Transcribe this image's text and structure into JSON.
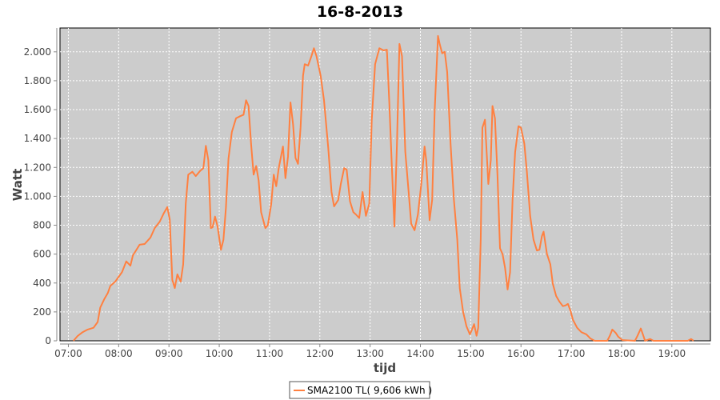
{
  "chart_data": {
    "type": "line",
    "title": "16-8-2013",
    "xlabel": "tijd",
    "ylabel": "Watt",
    "xlim": [
      "06:50",
      "19:46"
    ],
    "ylim": [
      0,
      2165
    ],
    "x_ticks": [
      "07:00",
      "08:00",
      "09:00",
      "10:00",
      "11:00",
      "12:00",
      "13:00",
      "14:00",
      "15:00",
      "16:00",
      "17:00",
      "18:00",
      "19:00"
    ],
    "y_ticks": [
      0,
      200,
      400,
      600,
      800,
      1000,
      1200,
      1400,
      1600,
      1800,
      2000
    ],
    "y_tick_labels": [
      "0",
      "200",
      "400",
      "600",
      "800",
      "1.000",
      "1.200",
      "1.400",
      "1.600",
      "1.800",
      "2.000"
    ],
    "grid": true,
    "legend_position": "bottom",
    "colors": {
      "plot_background": "#cccccc",
      "series": "#ff8040",
      "grid": "#ffffff"
    },
    "series": [
      {
        "name": "SMA2100 TL( 9,606 kWh )",
        "points": [
          [
            "07:06",
            0
          ],
          [
            "07:11",
            33
          ],
          [
            "07:17",
            60
          ],
          [
            "07:23",
            78
          ],
          [
            "07:30",
            90
          ],
          [
            "07:35",
            130
          ],
          [
            "07:38",
            230
          ],
          [
            "07:43",
            290
          ],
          [
            "07:47",
            330
          ],
          [
            "07:50",
            380
          ],
          [
            "07:56",
            410
          ],
          [
            "08:04",
            475
          ],
          [
            "08:09",
            550
          ],
          [
            "08:14",
            520
          ],
          [
            "08:17",
            590
          ],
          [
            "08:25",
            665
          ],
          [
            "08:31",
            670
          ],
          [
            "08:38",
            715
          ],
          [
            "08:43",
            780
          ],
          [
            "08:49",
            825
          ],
          [
            "08:54",
            885
          ],
          [
            "08:58",
            925
          ],
          [
            "09:01",
            840
          ],
          [
            "09:04",
            420
          ],
          [
            "09:07",
            365
          ],
          [
            "09:10",
            460
          ],
          [
            "09:14",
            410
          ],
          [
            "09:17",
            530
          ],
          [
            "09:20",
            950
          ],
          [
            "09:23",
            1150
          ],
          [
            "09:28",
            1170
          ],
          [
            "09:32",
            1140
          ],
          [
            "09:37",
            1175
          ],
          [
            "09:41",
            1195
          ],
          [
            "09:44",
            1350
          ],
          [
            "09:47",
            1250
          ],
          [
            "09:50",
            780
          ],
          [
            "09:52",
            785
          ],
          [
            "09:55",
            860
          ],
          [
            "09:58",
            790
          ],
          [
            "10:02",
            630
          ],
          [
            "10:05",
            700
          ],
          [
            "10:08",
            920
          ],
          [
            "10:11",
            1260
          ],
          [
            "10:15",
            1445
          ],
          [
            "10:20",
            1540
          ],
          [
            "10:25",
            1555
          ],
          [
            "10:29",
            1565
          ],
          [
            "10:32",
            1665
          ],
          [
            "10:35",
            1625
          ],
          [
            "10:38",
            1360
          ],
          [
            "10:41",
            1150
          ],
          [
            "10:44",
            1210
          ],
          [
            "10:47",
            1110
          ],
          [
            "10:50",
            890
          ],
          [
            "10:55",
            780
          ],
          [
            "10:58",
            800
          ],
          [
            "11:02",
            945
          ],
          [
            "11:05",
            1150
          ],
          [
            "11:08",
            1070
          ],
          [
            "11:11",
            1195
          ],
          [
            "11:16",
            1345
          ],
          [
            "11:19",
            1125
          ],
          [
            "11:22",
            1275
          ],
          [
            "11:25",
            1650
          ],
          [
            "11:28",
            1500
          ],
          [
            "11:31",
            1265
          ],
          [
            "11:34",
            1225
          ],
          [
            "11:37",
            1475
          ],
          [
            "11:40",
            1835
          ],
          [
            "11:42",
            1915
          ],
          [
            "11:46",
            1905
          ],
          [
            "11:50",
            1970
          ],
          [
            "11:53",
            2025
          ],
          [
            "11:56",
            1970
          ],
          [
            "12:01",
            1835
          ],
          [
            "12:05",
            1665
          ],
          [
            "12:10",
            1335
          ],
          [
            "12:14",
            1030
          ],
          [
            "12:17",
            930
          ],
          [
            "12:22",
            975
          ],
          [
            "12:25",
            1085
          ],
          [
            "12:29",
            1195
          ],
          [
            "12:32",
            1185
          ],
          [
            "12:36",
            965
          ],
          [
            "12:40",
            890
          ],
          [
            "12:43",
            875
          ],
          [
            "12:47",
            850
          ],
          [
            "12:51",
            1030
          ],
          [
            "12:55",
            865
          ],
          [
            "12:59",
            950
          ],
          [
            "13:02",
            1530
          ],
          [
            "13:06",
            1915
          ],
          [
            "13:11",
            2025
          ],
          [
            "13:16",
            2010
          ],
          [
            "13:20",
            2015
          ],
          [
            "13:23",
            1640
          ],
          [
            "13:26",
            1195
          ],
          [
            "13:29",
            790
          ],
          [
            "13:32",
            1365
          ],
          [
            "13:35",
            2055
          ],
          [
            "13:38",
            1970
          ],
          [
            "13:42",
            1310
          ],
          [
            "13:46",
            1030
          ],
          [
            "13:49",
            810
          ],
          [
            "13:53",
            765
          ],
          [
            "13:57",
            875
          ],
          [
            "14:01",
            1085
          ],
          [
            "14:05",
            1345
          ],
          [
            "14:07",
            1250
          ],
          [
            "14:11",
            835
          ],
          [
            "14:14",
            975
          ],
          [
            "14:17",
            1585
          ],
          [
            "14:21",
            2110
          ],
          [
            "14:23",
            2055
          ],
          [
            "14:26",
            1990
          ],
          [
            "14:29",
            2000
          ],
          [
            "14:32",
            1860
          ],
          [
            "14:36",
            1365
          ],
          [
            "14:40",
            975
          ],
          [
            "14:44",
            700
          ],
          [
            "14:47",
            365
          ],
          [
            "14:51",
            200
          ],
          [
            "14:55",
            100
          ],
          [
            "14:59",
            45
          ],
          [
            "15:01",
            70
          ],
          [
            "15:04",
            115
          ],
          [
            "15:07",
            35
          ],
          [
            "15:09",
            90
          ],
          [
            "15:12",
            700
          ],
          [
            "15:14",
            1475
          ],
          [
            "15:17",
            1530
          ],
          [
            "15:21",
            1085
          ],
          [
            "15:24",
            1250
          ],
          [
            "15:26",
            1625
          ],
          [
            "15:29",
            1540
          ],
          [
            "15:32",
            1140
          ],
          [
            "15:35",
            640
          ],
          [
            "15:38",
            600
          ],
          [
            "15:41",
            505
          ],
          [
            "15:44",
            355
          ],
          [
            "15:47",
            475
          ],
          [
            "15:50",
            975
          ],
          [
            "15:53",
            1305
          ],
          [
            "15:57",
            1485
          ],
          [
            "16:00",
            1475
          ],
          [
            "16:04",
            1365
          ],
          [
            "16:07",
            1170
          ],
          [
            "16:11",
            865
          ],
          [
            "16:15",
            700
          ],
          [
            "16:19",
            625
          ],
          [
            "16:22",
            630
          ],
          [
            "16:25",
            725
          ],
          [
            "16:27",
            755
          ],
          [
            "16:31",
            600
          ],
          [
            "16:35",
            530
          ],
          [
            "16:38",
            395
          ],
          [
            "16:42",
            310
          ],
          [
            "16:46",
            270
          ],
          [
            "16:50",
            240
          ],
          [
            "16:53",
            245
          ],
          [
            "16:56",
            255
          ],
          [
            "16:59",
            210
          ],
          [
            "17:02",
            145
          ],
          [
            "17:07",
            90
          ],
          [
            "17:12",
            60
          ],
          [
            "17:18",
            45
          ],
          [
            "17:23",
            15
          ],
          [
            "17:28",
            0
          ],
          [
            "17:43",
            0
          ],
          [
            "17:46",
            35
          ],
          [
            "17:49",
            78
          ],
          [
            "17:53",
            55
          ],
          [
            "17:56",
            28
          ],
          [
            "18:01",
            5
          ],
          [
            "18:16",
            0
          ],
          [
            "18:19",
            35
          ],
          [
            "18:23",
            85
          ],
          [
            "18:26",
            35
          ],
          [
            "18:28",
            0
          ],
          [
            "18:34",
            12
          ],
          [
            "18:38",
            0
          ],
          [
            "19:19",
            0
          ],
          [
            "19:23",
            12
          ],
          [
            "19:26",
            0
          ]
        ]
      }
    ]
  }
}
